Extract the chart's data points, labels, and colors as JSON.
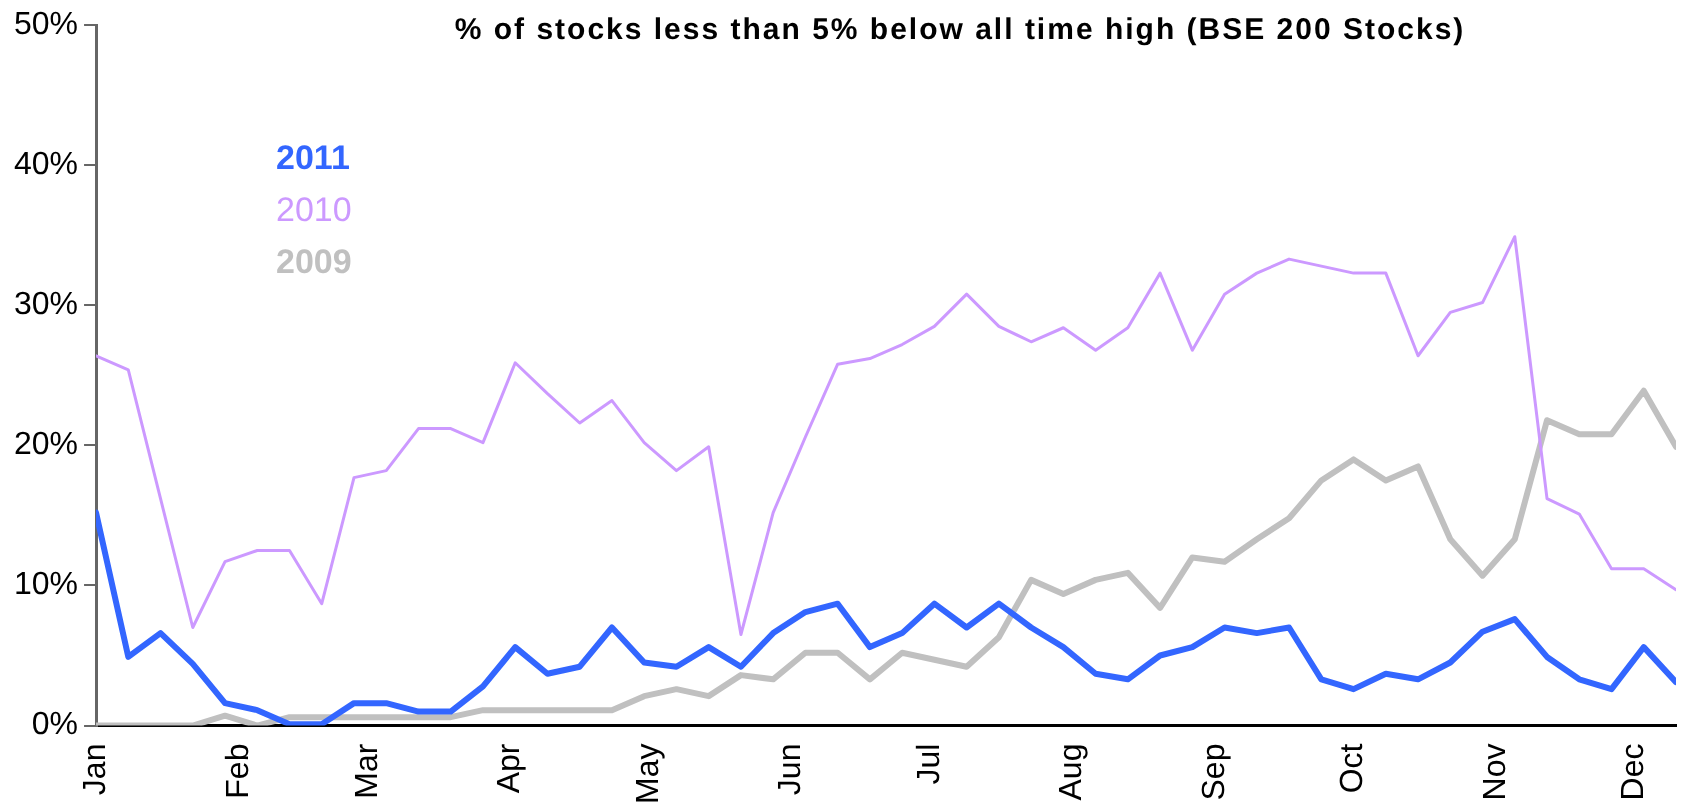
{
  "chart_data": {
    "type": "line",
    "title": "% of stocks less than 5% below all time high (BSE 200 Stocks)",
    "x": [
      "--01-01",
      "--01-08",
      "--01-15",
      "--01-22",
      "--01-29",
      "--02-05",
      "--02-12",
      "--02-19",
      "--02-26",
      "--03-05",
      "--03-12",
      "--03-19",
      "--03-26",
      "--04-02",
      "--04-09",
      "--04-16",
      "--04-23",
      "--04-30",
      "--05-07",
      "--05-14",
      "--05-21",
      "--05-28",
      "--06-04",
      "--06-11",
      "--06-18",
      "--06-25",
      "--07-02",
      "--07-09",
      "--07-16",
      "--07-23",
      "--07-30",
      "--08-06",
      "--08-13",
      "--08-20",
      "--08-27",
      "--09-03",
      "--09-10",
      "--09-17",
      "--09-24",
      "--10-01",
      "--10-08",
      "--10-15",
      "--10-22",
      "--10-29",
      "--11-05",
      "--11-12",
      "--11-19",
      "--11-26",
      "--12-03",
      "--12-10"
    ],
    "series": [
      {
        "name": "2011",
        "color": "#3366ff",
        "values": [
          15.2,
          4.9,
          6.6,
          4.4,
          1.6,
          1.1,
          0.1,
          0.1,
          1.6,
          1.6,
          1.0,
          1.0,
          2.8,
          5.6,
          3.7,
          4.2,
          7.0,
          4.5,
          4.2,
          5.6,
          4.2,
          6.6,
          8.1,
          8.7,
          5.6,
          6.6,
          8.7,
          7.0,
          8.7,
          7.0,
          5.6,
          3.7,
          3.3,
          5.0,
          5.6,
          7.0,
          6.6,
          7.0,
          3.3,
          2.6,
          3.7,
          3.3,
          4.5,
          6.7,
          7.6,
          4.9,
          3.3,
          2.6,
          5.6,
          3.1
        ]
      },
      {
        "name": "2010",
        "color": "#cc99ff",
        "values": [
          26.4,
          25.4,
          16.2,
          7.0,
          11.7,
          12.5,
          12.5,
          8.7,
          17.7,
          18.2,
          21.2,
          21.2,
          20.2,
          25.9,
          23.7,
          21.6,
          23.2,
          20.2,
          18.2,
          19.9,
          6.5,
          15.2,
          20.6,
          25.8,
          26.2,
          27.2,
          28.5,
          30.8,
          28.5,
          27.4,
          28.4,
          26.8,
          28.4,
          32.3,
          26.8,
          30.8,
          32.3,
          33.3,
          32.8,
          32.3,
          32.3,
          26.4,
          29.5,
          30.2,
          34.9,
          16.2,
          15.1,
          11.2,
          11.2,
          9.7
        ]
      },
      {
        "name": "2009",
        "color": "#c0c0c0",
        "values": [
          0,
          0,
          0,
          0,
          0.7,
          0,
          0.6,
          0.6,
          0.6,
          0.6,
          0.6,
          0.6,
          1.1,
          1.1,
          1.1,
          1.1,
          1.1,
          2.1,
          2.6,
          2.1,
          3.6,
          3.3,
          5.2,
          5.2,
          3.3,
          5.2,
          4.7,
          4.2,
          6.3,
          10.4,
          9.4,
          10.4,
          10.9,
          8.4,
          12.0,
          11.7,
          13.3,
          14.8,
          17.5,
          19.0,
          17.5,
          18.5,
          13.3,
          10.7,
          13.3,
          21.8,
          20.8,
          20.8,
          23.9,
          19.9
        ]
      }
    ],
    "xlim": [
      "--01-01",
      "--12-10"
    ],
    "xticks": [
      {
        "value": "--01-01",
        "label": "Jan"
      },
      {
        "value": "--02-01",
        "label": "Feb"
      },
      {
        "value": "--03-01",
        "label": "Mar"
      },
      {
        "value": "--04-01",
        "label": "Apr"
      },
      {
        "value": "--05-01",
        "label": "May"
      },
      {
        "value": "--06-01",
        "label": "Jun"
      },
      {
        "value": "--07-01",
        "label": "Jul"
      },
      {
        "value": "--08-01",
        "label": "Aug"
      },
      {
        "value": "--09-01",
        "label": "Sep"
      },
      {
        "value": "--10-01",
        "label": "Oct"
      },
      {
        "value": "--11-01",
        "label": "Nov"
      },
      {
        "value": "--12-01",
        "label": "Dec"
      }
    ],
    "ylim": [
      0,
      50
    ],
    "yticks": [
      {
        "value": 0,
        "label": "0%"
      },
      {
        "value": 10,
        "label": "10%"
      },
      {
        "value": 20,
        "label": "20%"
      },
      {
        "value": 30,
        "label": "30%"
      },
      {
        "value": 40,
        "label": "40%"
      },
      {
        "value": 50,
        "label": "50%"
      }
    ],
    "grid": false,
    "legend": "top left",
    "marker": "none",
    "line_style": "solid"
  }
}
